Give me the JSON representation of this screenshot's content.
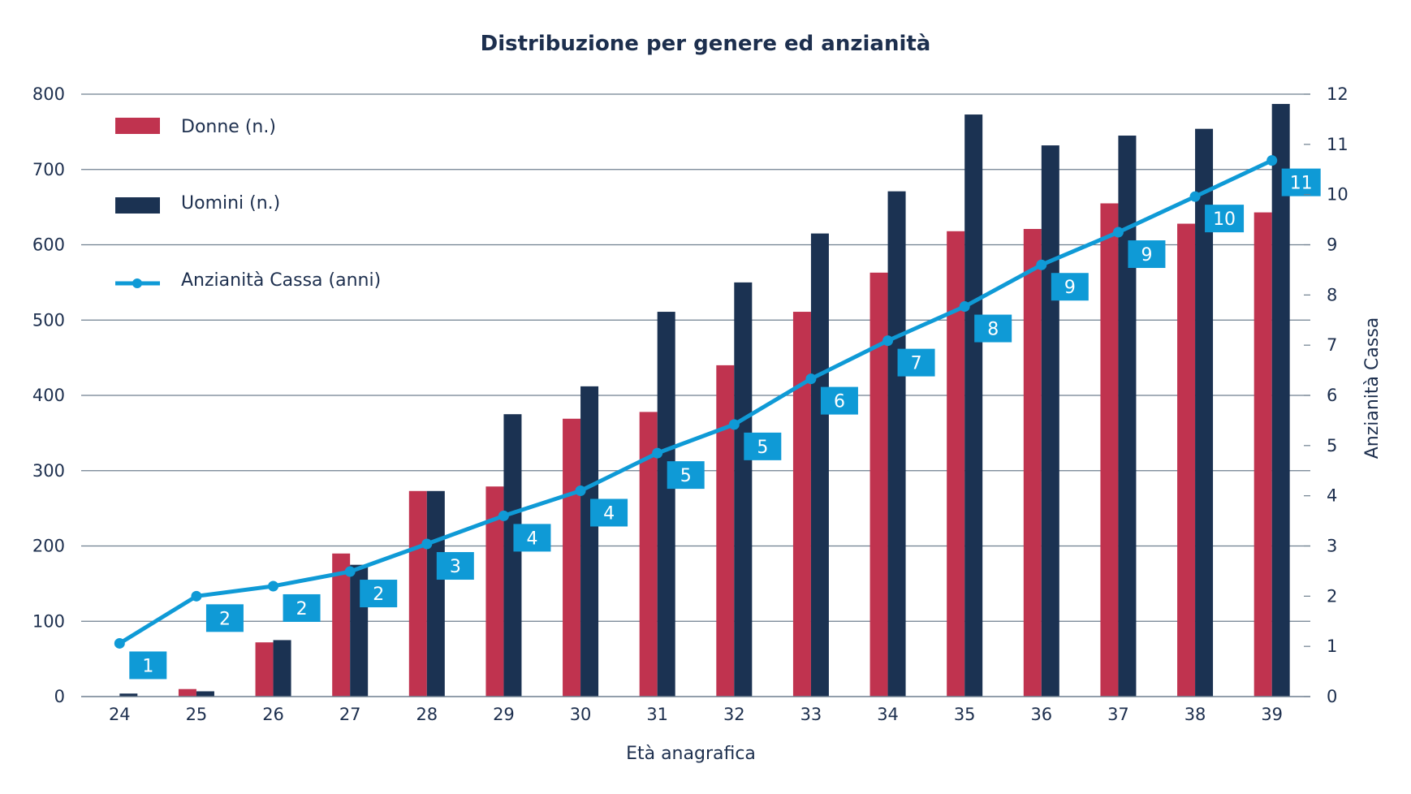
{
  "chart_data": {
    "type": "bar",
    "title": "Distribuzione per genere ed anzianità",
    "xlabel": "Età anagrafica",
    "ylabel": "",
    "y2label": "Anzianità Cassa",
    "categories": [
      "24",
      "25",
      "26",
      "27",
      "28",
      "29",
      "30",
      "31",
      "32",
      "33",
      "34",
      "35",
      "36",
      "37",
      "38",
      "39"
    ],
    "ylim": [
      0,
      800
    ],
    "yticks": [
      "0",
      "100",
      "200",
      "300",
      "400",
      "500",
      "600",
      "700",
      "800"
    ],
    "y2lim": [
      0,
      12
    ],
    "y2ticks": [
      "0",
      "1",
      "2",
      "3",
      "4",
      "5",
      "6",
      "7",
      "8",
      "9",
      "10",
      "11",
      "12"
    ],
    "grid": true,
    "legend_position": "top-left",
    "series": [
      {
        "name": "Donne (n.)",
        "kind": "bar",
        "axis": "left",
        "color": "#c0334f",
        "values": [
          0,
          10,
          72,
          190,
          273,
          279,
          369,
          378,
          440,
          511,
          563,
          618,
          621,
          655,
          628,
          643
        ]
      },
      {
        "name": "Uomini (n.)",
        "kind": "bar",
        "axis": "left",
        "color": "#1b3252",
        "values": [
          4,
          7,
          75,
          175,
          273,
          375,
          412,
          511,
          550,
          615,
          671,
          773,
          732,
          745,
          754,
          787
        ]
      },
      {
        "name": "Anzianità Cassa (anni)",
        "kind": "line",
        "axis": "right",
        "color": "#0f9ad6",
        "values": [
          1.06,
          2.0,
          2.2,
          2.49,
          3.04,
          3.6,
          4.1,
          4.85,
          5.42,
          6.33,
          7.09,
          7.77,
          8.6,
          9.25,
          9.96,
          10.68
        ],
        "labels": [
          "1",
          "2",
          "2",
          "2",
          "3",
          "4",
          "4",
          "5",
          "5",
          "6",
          "7",
          "8",
          "9",
          "9",
          "10",
          "11"
        ]
      }
    ]
  }
}
